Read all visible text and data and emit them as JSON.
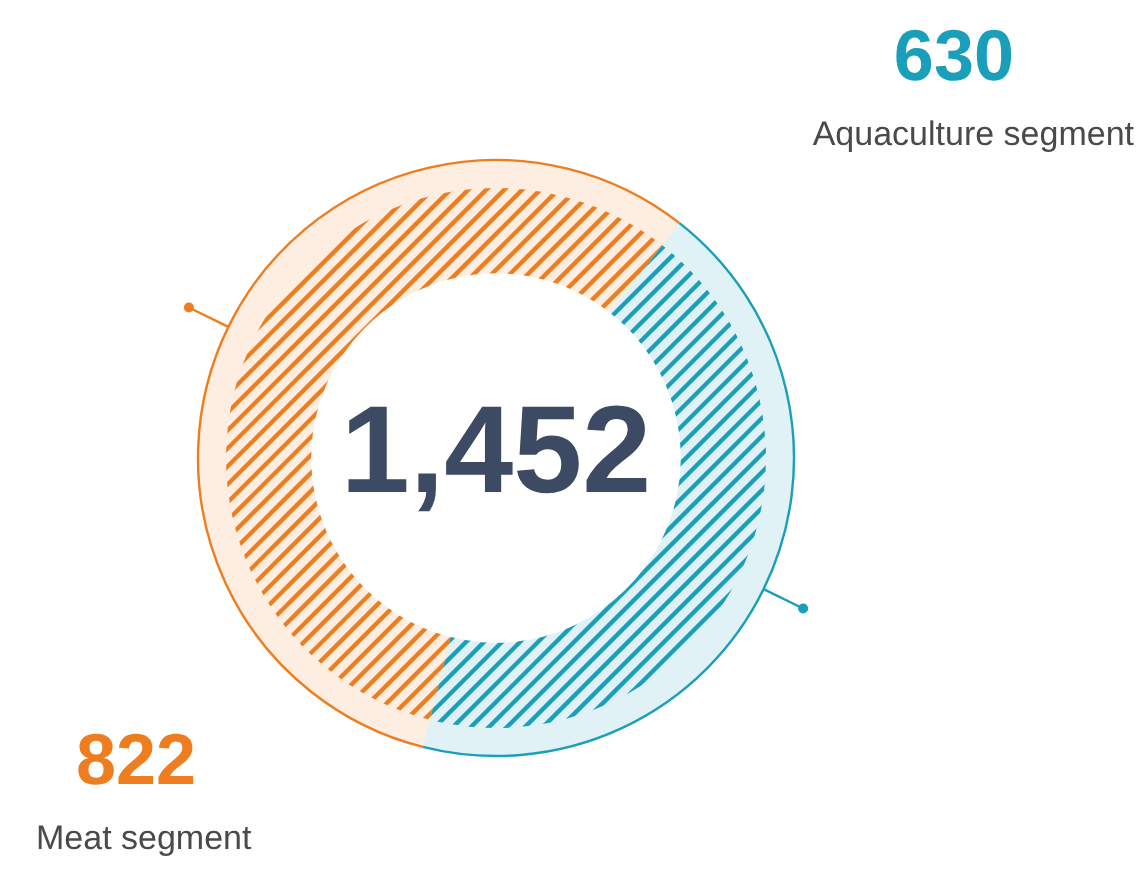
{
  "chart_data": {
    "type": "donut",
    "categories": [
      "Aquaculture segment",
      "Meat segment"
    ],
    "values": [
      630,
      822
    ],
    "colors": [
      "#1a9fba",
      "#ee7d1f"
    ],
    "value_labels": [
      "630",
      "822"
    ],
    "annotations": [
      "1,452"
    ]
  }
}
